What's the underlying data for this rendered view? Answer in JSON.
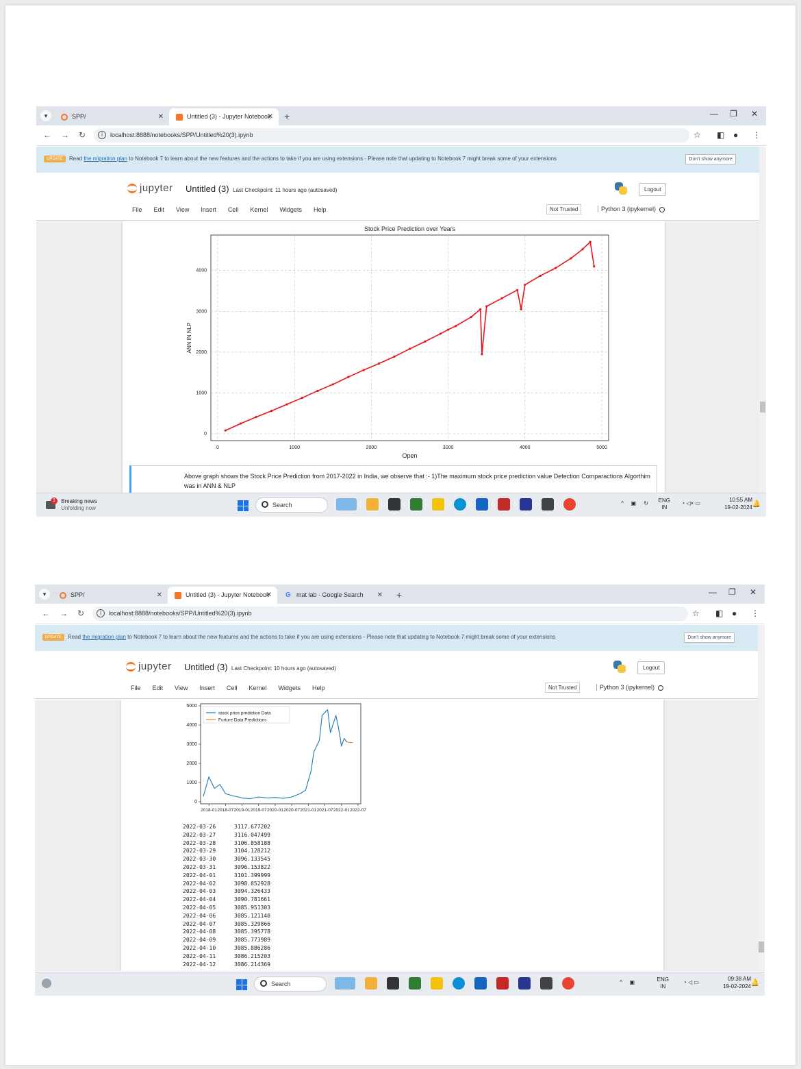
{
  "screenshots": [
    {
      "tabs": [
        {
          "label": "SPP/",
          "active": false
        },
        {
          "label": "Untitled (3) - Jupyter Notebook",
          "active": true
        }
      ],
      "url": "localhost:8888/notebooks/SPP/Untitled%20(3).ipynb",
      "banner": {
        "badge": "UPDATE",
        "pre": "Read",
        "link": "the migration plan",
        "post": "to Notebook 7 to learn about the new features and the actions to take if you are using extensions - Please note that updating to Notebook 7 might break some of your extensions",
        "dismiss": "Don't show anymore"
      },
      "header": {
        "logo": "jupyter",
        "title": "Untitled (3)",
        "checkpoint": "Last Checkpoint: 11 hours ago",
        "autosaved": "(autosaved)",
        "logout": "Logout",
        "menu": [
          "File",
          "Edit",
          "View",
          "Insert",
          "Cell",
          "Kernel",
          "Widgets",
          "Help"
        ],
        "trust": "Not Trusted",
        "kernel": "Python 3 (ipykernel)"
      },
      "markdown": "Above graph shows the Stock Price Prediction from 2017-2022 in India, we observe that :- 1)The maximum stock price prediction value Detection Comparactions Algorthim was in ANN & NLP",
      "taskbar": {
        "news_title": "Breaking news",
        "news_sub": "Unfolding now",
        "news_count": "1",
        "search": "Search",
        "lang": "ENG",
        "region": "IN",
        "time": "10:55 AM",
        "date": "19-02-2024"
      }
    },
    {
      "tabs": [
        {
          "label": "SPP/",
          "active": false
        },
        {
          "label": "Untitled (3) - Jupyter Notebook",
          "active": true
        },
        {
          "label": "mat lab - Google Search",
          "active": false
        }
      ],
      "url": "localhost:8888/notebooks/SPP/Untitled%20(3).ipynb",
      "banner": {
        "badge": "UPDATE",
        "pre": "Read",
        "link": "the migration plan",
        "post": "to Notebook 7 to learn about the new features and the actions to take if you are using extensions - Please note that updating to Notebook 7 might break some of your extensions",
        "dismiss": "Don't show anymore"
      },
      "header": {
        "logo": "jupyter",
        "title": "Untitled (3)",
        "checkpoint": "Last Checkpoint: 10 hours ago",
        "autosaved": "(autosaved)",
        "logout": "Logout",
        "menu": [
          "File",
          "Edit",
          "View",
          "Insert",
          "Cell",
          "Kernel",
          "Widgets",
          "Help"
        ],
        "trust": "Not Trusted",
        "kernel": "Python 3 (ipykernel)"
      },
      "output_rows": [
        [
          "2022-03-26",
          "3117.677202"
        ],
        [
          "2022-03-27",
          "3116.047499"
        ],
        [
          "2022-03-28",
          "3106.858188"
        ],
        [
          "2022-03-29",
          "3104.128212"
        ],
        [
          "2022-03-30",
          "3096.133545"
        ],
        [
          "2022-03-31",
          "3096.153822"
        ],
        [
          "2022-04-01",
          "3101.399999"
        ],
        [
          "2022-04-02",
          "3098.852928"
        ],
        [
          "2022-04-03",
          "3094.326433"
        ],
        [
          "2022-04-04",
          "3090.781661"
        ],
        [
          "2022-04-05",
          "3085.951303"
        ],
        [
          "2022-04-06",
          "3085.121140"
        ],
        [
          "2022-04-07",
          "3085.329866"
        ],
        [
          "2022-04-08",
          "3085.395778"
        ],
        [
          "2022-04-09",
          "3085.773989"
        ],
        [
          "2022-04-10",
          "3085.886286"
        ],
        [
          "2022-04-11",
          "3086.215203"
        ],
        [
          "2022-04-12",
          "3086.214369"
        ]
      ],
      "taskbar": {
        "search": "Search",
        "lang": "ENG",
        "region": "IN",
        "time": "09:38 AM",
        "date": "19-02-2024"
      }
    }
  ],
  "colors": {
    "scatter_line": "#e8141c",
    "history_line": "#1f77b4",
    "forecast_line": "#ff7f0e",
    "update_badge": "#f0ad4e",
    "banner_bg": "#d7eaf4"
  },
  "chart_data": [
    {
      "type": "line",
      "title": "Stock Price Prediction  over Years",
      "xlabel": "Open",
      "ylabel": "ANN IN NLP",
      "xlim": [
        0,
        5000
      ],
      "ylim": [
        0,
        4700
      ],
      "xticks": [
        "0",
        "1000",
        "2000",
        "3000",
        "4000",
        "5000"
      ],
      "yticks": [
        "0",
        "1000",
        "2000",
        "3000",
        "4000"
      ],
      "grid": true,
      "series": [
        {
          "x": [
            100,
            300,
            500,
            700,
            900,
            1100,
            1300,
            1500,
            1700,
            1900,
            2100,
            2300,
            2500,
            2700,
            2900,
            3000,
            3100,
            3300,
            3420,
            3440,
            3500,
            3700,
            3900,
            3950,
            4000,
            4200,
            4400,
            4600,
            4750,
            4850,
            4900
          ],
          "y": [
            80,
            250,
            410,
            560,
            720,
            880,
            1050,
            1210,
            1390,
            1560,
            1720,
            1890,
            2080,
            2260,
            2450,
            2550,
            2640,
            2860,
            3050,
            1950,
            3120,
            3320,
            3520,
            3050,
            3650,
            3870,
            4060,
            4300,
            4520,
            4700,
            4100
          ]
        }
      ]
    },
    {
      "type": "line",
      "xticks": [
        "2018-01",
        "2018-07",
        "2019-01",
        "2019-07",
        "2020-01",
        "2020-07",
        "2021-01",
        "2021-07",
        "2022-01",
        "2022-07"
      ],
      "yticks": [
        "0",
        "1000",
        "2000",
        "3000",
        "4000",
        "5000"
      ],
      "ylim": [
        0,
        5000
      ],
      "legend": "top-left",
      "series": [
        {
          "name": "stock price prediction  Data",
          "x": [
            "2017-11",
            "2018-01",
            "2018-03",
            "2018-05",
            "2018-07",
            "2018-10",
            "2019-01",
            "2019-04",
            "2019-07",
            "2019-10",
            "2020-01",
            "2020-04",
            "2020-07",
            "2020-10",
            "2020-12",
            "2021-02",
            "2021-03",
            "2021-05",
            "2021-06",
            "2021-08",
            "2021-09",
            "2021-11",
            "2021-12",
            "2022-01",
            "2022-02",
            "2022-03"
          ],
          "y": [
            280,
            1300,
            700,
            900,
            420,
            300,
            200,
            160,
            250,
            200,
            220,
            180,
            250,
            420,
            600,
            1600,
            2600,
            3200,
            4500,
            4800,
            3600,
            4500,
            3800,
            2900,
            3300,
            3100
          ]
        },
        {
          "name": "Furture Data Predictions",
          "x": [
            "2022-03",
            "2022-04",
            "2022-05"
          ],
          "y": [
            3117,
            3090,
            3086
          ]
        }
      ]
    }
  ]
}
